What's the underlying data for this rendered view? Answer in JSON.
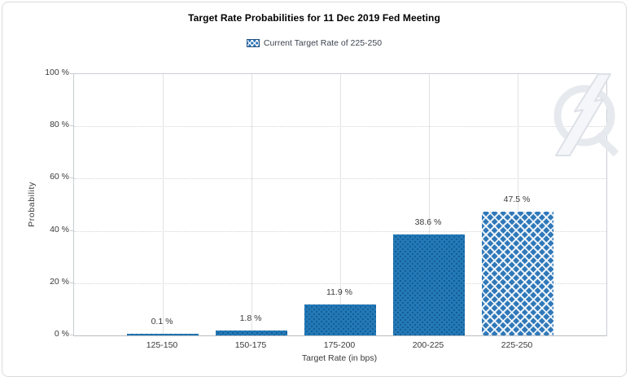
{
  "page": {
    "background": "#ffffff",
    "border_color": "#d9dbdd"
  },
  "chart_data": {
    "type": "bar",
    "title": "Target Rate Probabilities for 11 Dec 2019 Fed Meeting",
    "legend": [
      {
        "label": "Current Target Rate of 225-250",
        "pattern": "crosshatch"
      }
    ],
    "legend_position": "top-center",
    "categories": [
      "125-150",
      "150-175",
      "175-200",
      "200-225",
      "225-250"
    ],
    "values": [
      0.1,
      1.8,
      11.9,
      38.6,
      47.5
    ],
    "value_labels": [
      "0.1 %",
      "1.8 %",
      "11.9 %",
      "38.6 %",
      "47.5 %"
    ],
    "highlighted_category": "225-250",
    "xlabel": "Target Rate (in bps)",
    "ylabel": "Probability",
    "ylim": [
      0,
      100
    ],
    "yticks": [
      0,
      20,
      40,
      60,
      80,
      100
    ],
    "ytick_labels": [
      "0 %",
      "20 %",
      "40 %",
      "60 %",
      "80 %",
      "100 %"
    ],
    "grid": true,
    "colors": {
      "bar_color": "#2379b7",
      "bar_dot_color": "#0c4d82",
      "hatch_bar_color": "#2f78b9",
      "hatch_line_color": "#ffffff",
      "grid_color": "#d4d4d4",
      "axis_color": "#c9cdd2",
      "text_color": "#3a3a3a"
    }
  },
  "watermark": {
    "name": "quikstrike-logo"
  }
}
